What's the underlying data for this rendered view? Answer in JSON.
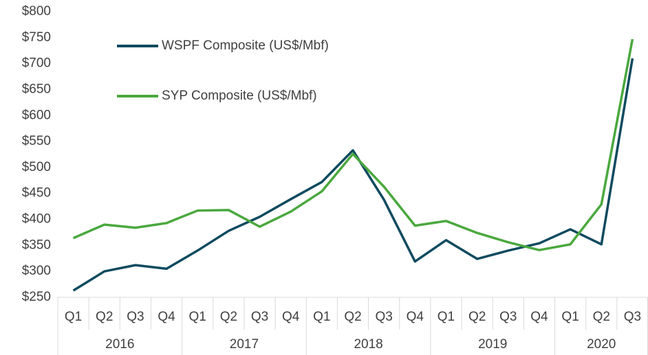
{
  "chart_data": {
    "type": "line",
    "groups": [
      {
        "label": "2016",
        "categories": [
          "Q1",
          "Q2",
          "Q3",
          "Q4"
        ]
      },
      {
        "label": "2017",
        "categories": [
          "Q1",
          "Q2",
          "Q3",
          "Q4"
        ]
      },
      {
        "label": "2018",
        "categories": [
          "Q1",
          "Q2",
          "Q3",
          "Q4"
        ]
      },
      {
        "label": "2019",
        "categories": [
          "Q1",
          "Q2",
          "Q3",
          "Q4"
        ]
      },
      {
        "label": "2020",
        "categories": [
          "Q1",
          "Q2",
          "Q3"
        ]
      }
    ],
    "series": [
      {
        "name": "WSPF Composite (US$/Mbf)",
        "color": "#0e4a5f",
        "values": [
          263,
          300,
          312,
          305,
          340,
          378,
          405,
          439,
          472,
          533,
          438,
          319,
          360,
          324,
          340,
          354,
          381,
          352,
          710
        ]
      },
      {
        "name": "SYP Composite (US$/Mbf)",
        "color": "#4aa83e",
        "values": [
          364,
          390,
          384,
          393,
          417,
          418,
          386,
          415,
          454,
          526,
          463,
          388,
          397,
          374,
          356,
          341,
          352,
          429,
          747
        ]
      }
    ],
    "ylim": [
      250,
      800
    ],
    "yticks": [
      {
        "value": 250,
        "label": "$250"
      },
      {
        "value": 300,
        "label": "$300"
      },
      {
        "value": 350,
        "label": "$350"
      },
      {
        "value": 400,
        "label": "$400"
      },
      {
        "value": 450,
        "label": "$450"
      },
      {
        "value": 500,
        "label": "$500"
      },
      {
        "value": 550,
        "label": "$550"
      },
      {
        "value": 600,
        "label": "$600"
      },
      {
        "value": 650,
        "label": "$650"
      },
      {
        "value": 700,
        "label": "$700"
      },
      {
        "value": 750,
        "label": "$750"
      },
      {
        "value": 800,
        "label": "$800"
      }
    ],
    "grid": false,
    "legend": "upper-left"
  }
}
